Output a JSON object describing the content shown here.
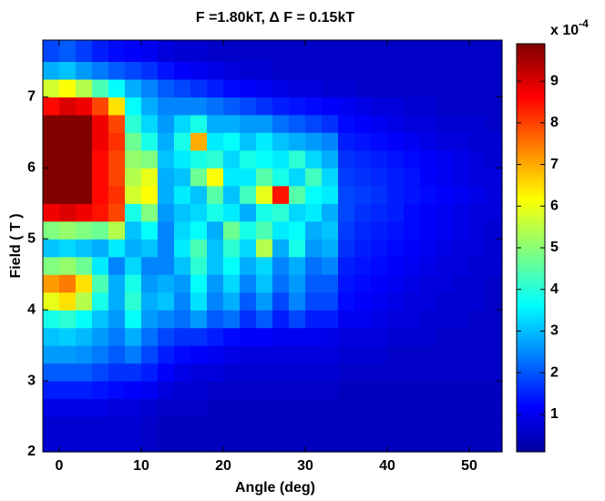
{
  "chart_data": {
    "type": "heatmap",
    "title": "F =1.80kT, Δ F = 0.15kT",
    "xlabel": "Angle (deg)",
    "ylabel": "Field ( T )",
    "colorbar_label": "x 10",
    "colorbar_exponent": "-4",
    "colormap": "jet",
    "xlim": [
      -2,
      54
    ],
    "ylim": [
      2,
      7.8
    ],
    "clim": [
      0.1,
      9.9
    ],
    "xticks": [
      0,
      10,
      20,
      30,
      40,
      50
    ],
    "yticks": [
      2,
      3,
      4,
      5,
      6,
      7
    ],
    "cticks": [
      1,
      2,
      3,
      4,
      5,
      6,
      7,
      8,
      9
    ],
    "xbins": [
      -2,
      0,
      2,
      4,
      6,
      8,
      10,
      12,
      14,
      16,
      18,
      20,
      22,
      24,
      26,
      28,
      30,
      32,
      34,
      36,
      38,
      40,
      42,
      44,
      46,
      48,
      50,
      52,
      54
    ],
    "ybins": [
      2,
      2.25,
      2.5,
      2.75,
      3,
      3.25,
      3.5,
      3.75,
      4,
      4.25,
      4.5,
      4.75,
      5,
      5.25,
      5.5,
      5.75,
      6,
      6.25,
      6.5,
      6.75,
      7,
      7.25,
      7.5,
      7.8
    ],
    "z": [
      [
        0.9,
        0.9,
        0.9,
        0.9,
        0.9,
        0.9,
        0.8,
        0.7,
        0.7,
        0.7,
        0.7,
        0.7,
        0.7,
        0.7,
        0.7,
        0.7,
        0.7,
        0.7,
        0.7,
        0.7,
        0.7,
        0.7,
        0.7,
        0.7,
        0.7,
        0.7,
        0.7,
        0.7
      ],
      [
        0.9,
        0.9,
        0.9,
        0.9,
        0.9,
        0.9,
        0.8,
        0.7,
        0.7,
        0.7,
        0.7,
        0.7,
        0.7,
        0.7,
        0.7,
        0.7,
        0.7,
        0.7,
        0.7,
        0.7,
        0.7,
        0.7,
        0.7,
        0.7,
        0.7,
        0.7,
        0.7,
        0.7
      ],
      [
        1.1,
        1.1,
        1.1,
        1.1,
        1.0,
        1.0,
        0.9,
        0.8,
        0.8,
        0.8,
        0.7,
        0.7,
        0.7,
        0.7,
        0.7,
        0.7,
        0.7,
        0.7,
        0.7,
        0.7,
        0.7,
        0.7,
        0.7,
        0.7,
        0.7,
        0.7,
        0.7,
        0.7
      ],
      [
        1.6,
        1.6,
        1.6,
        1.5,
        1.4,
        1.3,
        1.2,
        1.0,
        0.9,
        0.9,
        0.8,
        0.8,
        0.8,
        0.8,
        0.8,
        0.8,
        0.8,
        0.8,
        0.7,
        0.7,
        0.7,
        0.7,
        0.7,
        0.7,
        0.7,
        0.7,
        0.7,
        0.7
      ],
      [
        2.2,
        2.2,
        2.2,
        2.0,
        1.8,
        1.8,
        1.6,
        1.3,
        1.1,
        1.0,
        1.0,
        0.9,
        0.9,
        0.9,
        0.9,
        0.9,
        0.9,
        0.9,
        0.8,
        0.8,
        0.8,
        0.8,
        0.8,
        0.8,
        0.8,
        0.8,
        0.8,
        0.8
      ],
      [
        2.8,
        2.8,
        2.7,
        2.5,
        2.2,
        2.5,
        2.0,
        1.6,
        1.4,
        1.3,
        1.2,
        1.1,
        1.0,
        1.0,
        1.0,
        1.0,
        1.0,
        1.0,
        0.9,
        0.9,
        0.9,
        0.8,
        0.8,
        0.8,
        0.8,
        0.8,
        0.8,
        0.8
      ],
      [
        3.2,
        3.3,
        3.1,
        2.8,
        2.5,
        3.0,
        2.4,
        2.0,
        1.8,
        1.8,
        1.6,
        1.4,
        1.3,
        1.3,
        1.2,
        1.2,
        1.2,
        1.1,
        1.0,
        1.0,
        1.0,
        0.9,
        0.9,
        0.9,
        0.8,
        0.8,
        0.8,
        0.8
      ],
      [
        4.0,
        4.2,
        3.8,
        3.2,
        2.8,
        3.8,
        2.8,
        2.6,
        2.4,
        2.8,
        2.2,
        2.4,
        1.8,
        2.2,
        1.6,
        2.0,
        1.6,
        1.6,
        1.2,
        1.2,
        1.1,
        1.0,
        1.0,
        0.9,
        0.9,
        0.9,
        0.8,
        0.8
      ],
      [
        6.0,
        6.5,
        5.5,
        4.0,
        3.0,
        4.2,
        3.0,
        3.2,
        2.6,
        3.5,
        2.6,
        3.0,
        2.2,
        2.8,
        2.0,
        2.6,
        2.0,
        2.0,
        1.4,
        1.3,
        1.2,
        1.1,
        1.0,
        1.0,
        0.9,
        0.9,
        0.9,
        0.8
      ],
      [
        7.2,
        7.5,
        6.5,
        4.5,
        3.0,
        4.0,
        2.8,
        3.0,
        2.8,
        3.8,
        2.8,
        3.4,
        2.6,
        3.2,
        2.4,
        2.8,
        2.2,
        2.2,
        1.5,
        1.4,
        1.3,
        1.2,
        1.1,
        1.0,
        1.0,
        0.9,
        0.9,
        0.8
      ],
      [
        5.0,
        5.2,
        4.8,
        3.6,
        2.6,
        3.4,
        2.6,
        2.6,
        3.2,
        4.2,
        3.2,
        3.8,
        3.0,
        3.4,
        2.6,
        3.0,
        2.4,
        2.6,
        1.6,
        1.5,
        1.4,
        1.3,
        1.2,
        1.1,
        1.0,
        1.0,
        0.9,
        0.9
      ],
      [
        3.2,
        3.4,
        3.2,
        3.0,
        3.6,
        3.0,
        3.2,
        2.6,
        3.6,
        4.5,
        3.2,
        4.2,
        3.4,
        5.5,
        3.0,
        4.0,
        2.8,
        3.0,
        1.8,
        1.6,
        1.5,
        1.4,
        1.3,
        1.2,
        1.1,
        1.0,
        1.0,
        0.9
      ],
      [
        5.0,
        5.2,
        5.0,
        4.8,
        5.5,
        3.2,
        3.8,
        2.6,
        3.4,
        3.8,
        3.0,
        4.8,
        4.0,
        4.5,
        3.6,
        3.8,
        3.0,
        3.2,
        1.9,
        1.7,
        1.6,
        1.5,
        1.4,
        1.3,
        1.2,
        1.1,
        1.0,
        0.9
      ],
      [
        8.8,
        9.0,
        8.8,
        8.5,
        8.0,
        4.0,
        5.0,
        2.8,
        3.2,
        3.4,
        4.0,
        3.6,
        3.0,
        4.0,
        4.2,
        3.4,
        3.6,
        3.0,
        2.0,
        1.8,
        1.7,
        1.6,
        1.4,
        1.3,
        1.2,
        1.1,
        1.0,
        1.0
      ],
      [
        9.9,
        9.9,
        9.9,
        8.6,
        8.2,
        5.8,
        6.2,
        3.0,
        3.6,
        3.2,
        4.6,
        3.2,
        4.4,
        6.0,
        8.5,
        4.6,
        3.8,
        3.6,
        2.0,
        1.9,
        1.8,
        1.6,
        1.5,
        1.4,
        1.3,
        1.2,
        1.1,
        1.0
      ],
      [
        9.9,
        9.9,
        9.9,
        8.6,
        8.0,
        5.5,
        6.0,
        3.0,
        3.2,
        4.8,
        6.2,
        3.6,
        3.6,
        4.6,
        4.0,
        3.4,
        4.4,
        3.4,
        1.9,
        1.8,
        1.7,
        1.6,
        1.5,
        1.3,
        1.2,
        1.1,
        1.0,
        1.0
      ],
      [
        9.9,
        9.9,
        9.9,
        8.6,
        8.0,
        5.2,
        5.0,
        3.2,
        3.6,
        4.0,
        4.2,
        3.4,
        4.0,
        3.8,
        3.6,
        4.2,
        3.4,
        3.0,
        1.8,
        1.7,
        1.6,
        1.5,
        1.4,
        1.3,
        1.2,
        1.1,
        1.0,
        0.9
      ],
      [
        9.9,
        9.9,
        9.9,
        8.8,
        8.2,
        4.8,
        4.0,
        3.0,
        4.0,
        7.0,
        3.6,
        3.8,
        3.2,
        3.6,
        3.2,
        3.0,
        2.8,
        2.6,
        1.6,
        1.5,
        1.4,
        1.3,
        1.2,
        1.1,
        1.0,
        1.0,
        0.9,
        0.9
      ],
      [
        9.9,
        9.9,
        9.9,
        8.8,
        8.0,
        4.2,
        3.4,
        2.8,
        3.4,
        4.0,
        3.0,
        3.0,
        2.8,
        2.8,
        2.4,
        2.2,
        2.0,
        1.8,
        1.4,
        1.3,
        1.2,
        1.1,
        1.0,
        1.0,
        0.9,
        0.9,
        0.9,
        0.8
      ],
      [
        8.6,
        9.0,
        8.8,
        8.0,
        6.5,
        3.8,
        3.0,
        2.6,
        2.6,
        2.6,
        2.4,
        2.2,
        2.0,
        1.8,
        1.6,
        1.5,
        1.4,
        1.3,
        1.2,
        1.1,
        1.0,
        1.0,
        0.9,
        0.9,
        0.8,
        0.8,
        0.8,
        0.8
      ],
      [
        5.8,
        6.2,
        5.5,
        4.5,
        3.8,
        3.0,
        2.6,
        2.2,
        2.0,
        1.8,
        1.6,
        1.4,
        1.3,
        1.2,
        1.1,
        1.0,
        1.0,
        0.9,
        0.9,
        0.8,
        0.8,
        0.8,
        0.8,
        0.8,
        0.8,
        0.8,
        0.8,
        0.8
      ],
      [
        3.0,
        3.2,
        2.8,
        2.5,
        2.2,
        2.0,
        1.8,
        1.5,
        1.3,
        1.2,
        1.1,
        1.0,
        0.9,
        0.9,
        0.8,
        0.8,
        0.8,
        0.8,
        0.8,
        0.8,
        0.8,
        0.8,
        0.8,
        0.8,
        0.8,
        0.8,
        0.8,
        0.8
      ],
      [
        2.0,
        2.2,
        1.9,
        1.6,
        1.4,
        1.3,
        1.2,
        1.0,
        0.9,
        0.9,
        0.8,
        0.8,
        0.8,
        0.8,
        0.8,
        0.8,
        0.8,
        0.8,
        0.8,
        0.8,
        0.8,
        0.8,
        0.8,
        0.8,
        0.8,
        0.8,
        0.8,
        0.8
      ]
    ]
  }
}
